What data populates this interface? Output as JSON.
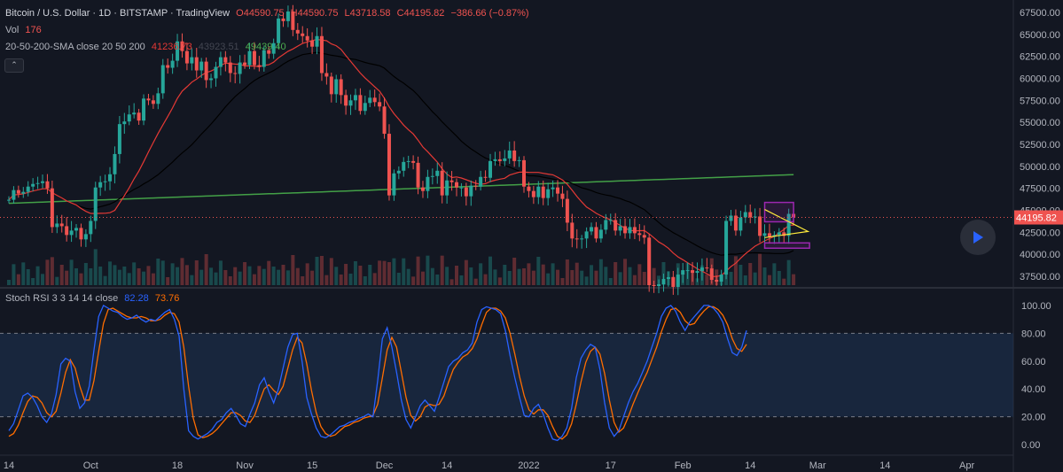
{
  "legend": {
    "title": "Bitcoin / U.S. Dollar · 1D · BITSTAMP · TradingView",
    "open": "O44590.75",
    "high": "H44590.75",
    "low": "L43718.58",
    "close": "C44195.82",
    "change": "−386.66 (−0.87%)",
    "vol_label": "Vol",
    "vol_value": "176",
    "sma_label": "20-50-200-SMA close 20 50 200",
    "sma20_value": "41236.73",
    "sma50_value": "43923.51",
    "sma200_value": "49439.40",
    "rsi_label": "Stoch RSI 3 3 14 14 close",
    "rsi_k_value": "82.28",
    "rsi_d_value": "73.76"
  },
  "colors": {
    "background": "#131722",
    "up": "#26a69a",
    "down": "#ef5350",
    "sma20": "#e53935",
    "sma50": "#000000",
    "sma200": "#43a047",
    "rsi_k": "#2962ff",
    "rsi_d": "#ff6d00",
    "pattern": "#9c27b0",
    "wedge": "#ffeb3b",
    "text": "#b2b5be"
  },
  "controls": {
    "collapse_icon": "chevron-up-icon",
    "play_icon": "play-icon"
  },
  "chart_data": [
    {
      "type": "candlestick",
      "title": "Bitcoin / U.S. Dollar",
      "period": "1D",
      "ylim": [
        36500,
        68500
      ],
      "y_ticks": [
        "67500.00",
        "65000.00",
        "62500.00",
        "60000.00",
        "57500.00",
        "55000.00",
        "52500.00",
        "50000.00",
        "47500.00",
        "45000.00",
        "42500.00",
        "40000.00",
        "37500.00"
      ],
      "last_price": "44195.82",
      "x_ticks": [
        {
          "day": 0,
          "label": "14"
        },
        {
          "day": 17,
          "label": "Oct"
        },
        {
          "day": 35,
          "label": "18"
        },
        {
          "day": 49,
          "label": "Nov"
        },
        {
          "day": 63,
          "label": "15"
        },
        {
          "day": 78,
          "label": "Dec"
        },
        {
          "day": 91,
          "label": "14"
        },
        {
          "day": 108,
          "label": "2022"
        },
        {
          "day": 125,
          "label": "17"
        },
        {
          "day": 140,
          "label": "Feb"
        },
        {
          "day": 154,
          "label": "14"
        },
        {
          "day": 168,
          "label": "Mar"
        },
        {
          "day": 182,
          "label": "14"
        },
        {
          "day": 199,
          "label": "Apr"
        }
      ],
      "closes": [
        46200,
        47300,
        46900,
        47100,
        47700,
        48000,
        48100,
        48300,
        47500,
        43100,
        43500,
        43200,
        42200,
        42700,
        43000,
        41700,
        42300,
        43800,
        47600,
        48200,
        48300,
        49100,
        51400,
        54800,
        55100,
        55900,
        56100,
        55200,
        57700,
        57500,
        57100,
        58300,
        61500,
        61200,
        62000,
        64200,
        63100,
        61700,
        62400,
        60900,
        61900,
        59800,
        60000,
        61300,
        62400,
        61800,
        60600,
        60500,
        61800,
        61500,
        63100,
        61500,
        61300,
        63200,
        62800,
        64000,
        66800,
        66500,
        67600,
        65500,
        65100,
        64800,
        64300,
        63600,
        64800,
        60600,
        60200,
        58200,
        59900,
        58100,
        56900,
        57500,
        58100,
        56300,
        57200,
        57800,
        57300,
        56800,
        53700,
        46700,
        49200,
        49500,
        50500,
        50600,
        50400,
        47600,
        47200,
        48800,
        48900,
        49500,
        46700,
        48400,
        48200,
        47600,
        47600,
        46600,
        47800,
        47700,
        48800,
        48700,
        50600,
        50800,
        50600,
        50900,
        51800,
        50600,
        50700,
        47700,
        47200,
        46500,
        47700,
        46400,
        47400,
        47600,
        46900,
        46300,
        43600,
        41800,
        41700,
        41800,
        42600,
        43100,
        41800,
        42800,
        43900,
        43900,
        42700,
        43200,
        42400,
        43100,
        42400,
        42200,
        41900,
        36500,
        36400,
        36600,
        37200,
        37400,
        36300,
        37700,
        38200,
        38200,
        37900,
        38100,
        38500,
        38400,
        37100,
        36900,
        37700,
        43800,
        44400,
        42700,
        44200,
        44800,
        44200,
        44300,
        42100,
        42400,
        42000,
        42200,
        42500,
        42100,
        44600,
        44200
      ],
      "volume_scale_note": "relative volumes",
      "ranges": [
        {
          "label": "consolidation box",
          "from": 157,
          "to": 163,
          "top": 45900,
          "bottom": 43700
        }
      ],
      "wedge": {
        "from": 157,
        "to": 166,
        "top": 45100,
        "bottom": 41900
      }
    },
    {
      "type": "line",
      "name": "Stoch RSI",
      "ylim": [
        -5,
        105
      ],
      "y_ticks": [
        "100.00",
        "80.00",
        "60.00",
        "40.00",
        "20.00",
        "0.00"
      ],
      "bands": [
        20,
        80
      ],
      "series": [
        {
          "name": "K",
          "values": [
            10,
            15,
            25,
            35,
            37,
            34,
            28,
            20,
            16,
            22,
            36,
            58,
            62,
            60,
            38,
            26,
            30,
            42,
            68,
            92,
            100,
            98,
            96,
            95,
            92,
            90,
            91,
            93,
            90,
            88,
            90,
            89,
            92,
            95,
            97,
            90,
            78,
            40,
            10,
            6,
            4,
            6,
            8,
            11,
            16,
            18,
            23,
            26,
            21,
            15,
            13,
            22,
            30,
            43,
            48,
            38,
            30,
            40,
            55,
            70,
            79,
            80,
            60,
            34,
            22,
            12,
            6,
            5,
            7,
            10,
            13,
            14,
            16,
            17,
            19,
            20,
            22,
            20,
            46,
            76,
            84,
            70,
            52,
            32,
            18,
            12,
            20,
            28,
            32,
            28,
            24,
            34,
            45,
            56,
            60,
            62,
            66,
            68,
            73,
            88,
            97,
            99,
            98,
            97,
            94,
            82,
            64,
            48,
            34,
            21,
            20,
            26,
            29,
            22,
            12,
            4,
            3,
            6,
            12,
            26,
            48,
            62,
            68,
            72,
            70,
            54,
            30,
            12,
            6,
            10,
            20,
            30,
            38,
            44,
            52,
            60,
            70,
            80,
            92,
            98,
            100,
            96,
            88,
            82,
            88,
            92,
            96,
            100,
            100,
            98,
            94,
            88,
            76,
            66,
            64,
            70,
            82
          ]
        },
        {
          "name": "D",
          "values": [
            6,
            8,
            14,
            23,
            31,
            35,
            34,
            30,
            23,
            20,
            24,
            37,
            52,
            61,
            55,
            42,
            32,
            32,
            46,
            67,
            87,
            97,
            98,
            96,
            94,
            92,
            91,
            91,
            92,
            91,
            89,
            89,
            90,
            93,
            95,
            94,
            88,
            70,
            42,
            19,
            7,
            5,
            6,
            8,
            11,
            15,
            19,
            23,
            23,
            21,
            17,
            16,
            21,
            31,
            40,
            43,
            39,
            36,
            42,
            55,
            68,
            77,
            73,
            58,
            39,
            23,
            13,
            8,
            6,
            7,
            10,
            13,
            14,
            16,
            17,
            19,
            20,
            21,
            29,
            48,
            68,
            77,
            70,
            52,
            34,
            21,
            17,
            20,
            27,
            29,
            28,
            29,
            35,
            45,
            54,
            59,
            63,
            65,
            69,
            76,
            86,
            95,
            98,
            98,
            96,
            91,
            80,
            65,
            49,
            35,
            25,
            22,
            25,
            25,
            21,
            13,
            6,
            4,
            7,
            15,
            29,
            45,
            59,
            67,
            70,
            65,
            51,
            32,
            16,
            9,
            12,
            20,
            29,
            37,
            45,
            52,
            61,
            70,
            81,
            90,
            97,
            98,
            95,
            89,
            86,
            87,
            92,
            96,
            99,
            99,
            97,
            93,
            86,
            76,
            69,
            67,
            72
          ]
        }
      ]
    }
  ]
}
